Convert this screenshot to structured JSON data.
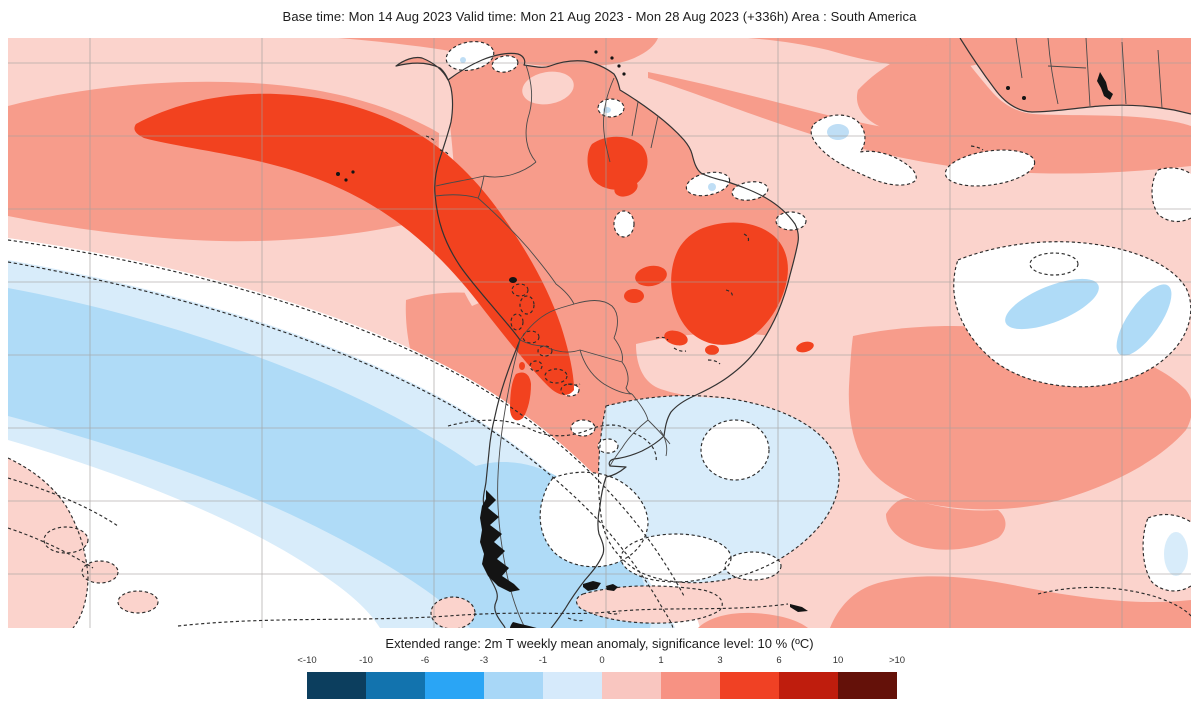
{
  "title": "Base time: Mon 14 Aug 2023 Valid time: Mon 21 Aug 2023 - Mon 28 Aug 2023 (+336h) Area : South America",
  "caption": "Extended range: 2m T weekly mean anomaly, significance level: 10 % (ºC)",
  "colorbar": {
    "labels": [
      "<-10",
      "-10",
      "-6",
      "-3",
      "-1",
      "0",
      "1",
      "3",
      "6",
      "10",
      ">10"
    ],
    "colors": [
      "#0c3e5e",
      "#1273ae",
      "#2aa5f5",
      "#a8d7f7",
      "#d6eafb",
      "#f9c6c0",
      "#f79283",
      "#f04124",
      "#bf1d0d",
      "#641109"
    ]
  },
  "chart_data": {
    "type": "heatmap",
    "title": "2m temperature weekly mean anomaly (ºC), ECMWF extended range",
    "area": "South America",
    "base_time": "Mon 14 Aug 2023",
    "valid_time": "Mon 21 Aug 2023 - Mon 28 Aug 2023 (+336h)",
    "lead": "+336h",
    "significance_level_percent": 10,
    "units": "ºC",
    "scale_breaks": [
      -10,
      -6,
      -3,
      -1,
      0,
      1,
      3,
      6,
      10
    ],
    "scale_colors": [
      "#0c3e5e",
      "#1273ae",
      "#2aa5f5",
      "#a8d7f7",
      "#d6eafb",
      "#f9c6c0",
      "#f79283",
      "#f04124",
      "#bf1d0d",
      "#641109"
    ],
    "notable_regions": [
      {
        "region": "Eastern Pacific off Peru/Ecuador",
        "anomaly": "+3 to +6"
      },
      {
        "region": "Eastern Brazil interior",
        "anomaly": "+3 to +6"
      },
      {
        "region": "Amazon basin / tropical South America",
        "anomaly": "+1 to +3"
      },
      {
        "region": "Andes Argentina small spot",
        "anomaly": "+3 to +6"
      },
      {
        "region": "Southeast Pacific / Patagonia / Southern Ocean band",
        "anomaly": "-1 to -3"
      },
      {
        "region": "South Atlantic near Argentina coast",
        "anomaly": "-1 to 0, not significant"
      },
      {
        "region": "West Africa / Gulf of Guinea corner",
        "anomaly": "+1 to +3"
      },
      {
        "region": "White dashed-outlined areas",
        "anomaly": "not significant at 10% level"
      }
    ]
  }
}
